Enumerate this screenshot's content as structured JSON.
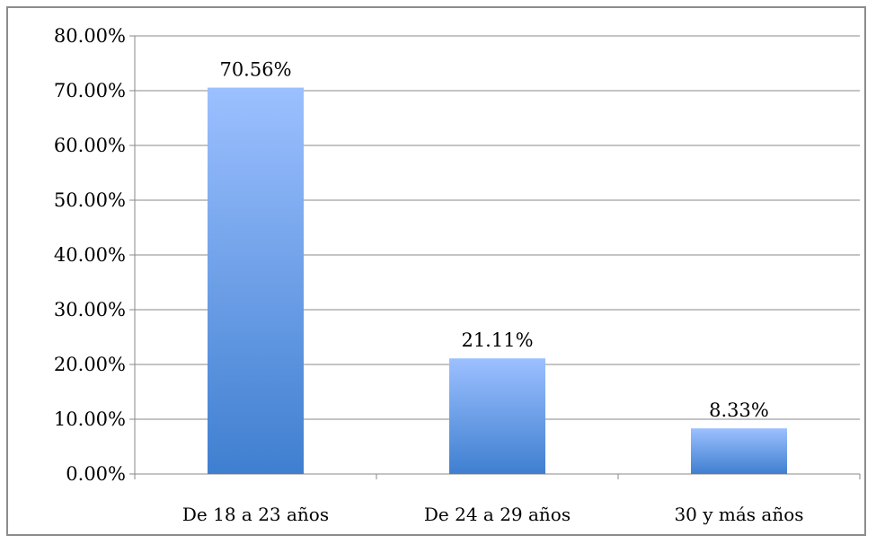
{
  "chart_data": {
    "type": "bar",
    "categories": [
      "De 18 a 23 años",
      "De 24 a 29 años",
      "30 y más años"
    ],
    "values": [
      70.56,
      21.11,
      8.33
    ],
    "data_labels": [
      "70.56%",
      "21.11%",
      "8.33%"
    ],
    "title": "",
    "xlabel": "",
    "ylabel": "",
    "ylim": [
      0,
      80
    ],
    "yticks": [
      0,
      10,
      20,
      30,
      40,
      50,
      60,
      70,
      80
    ],
    "ytick_labels": [
      "0.00%",
      "10.00%",
      "20.00%",
      "30.00%",
      "40.00%",
      "50.00%",
      "60.00%",
      "70.00%",
      "80.00%"
    ],
    "grid": true,
    "legend": "none",
    "colors": {
      "bar_top": "#9cc0ff",
      "bar_bottom": "#3f7fd0",
      "grid": "#8a8a8a",
      "axis": "#8a8a8a",
      "border": "#8c8c8c"
    }
  }
}
